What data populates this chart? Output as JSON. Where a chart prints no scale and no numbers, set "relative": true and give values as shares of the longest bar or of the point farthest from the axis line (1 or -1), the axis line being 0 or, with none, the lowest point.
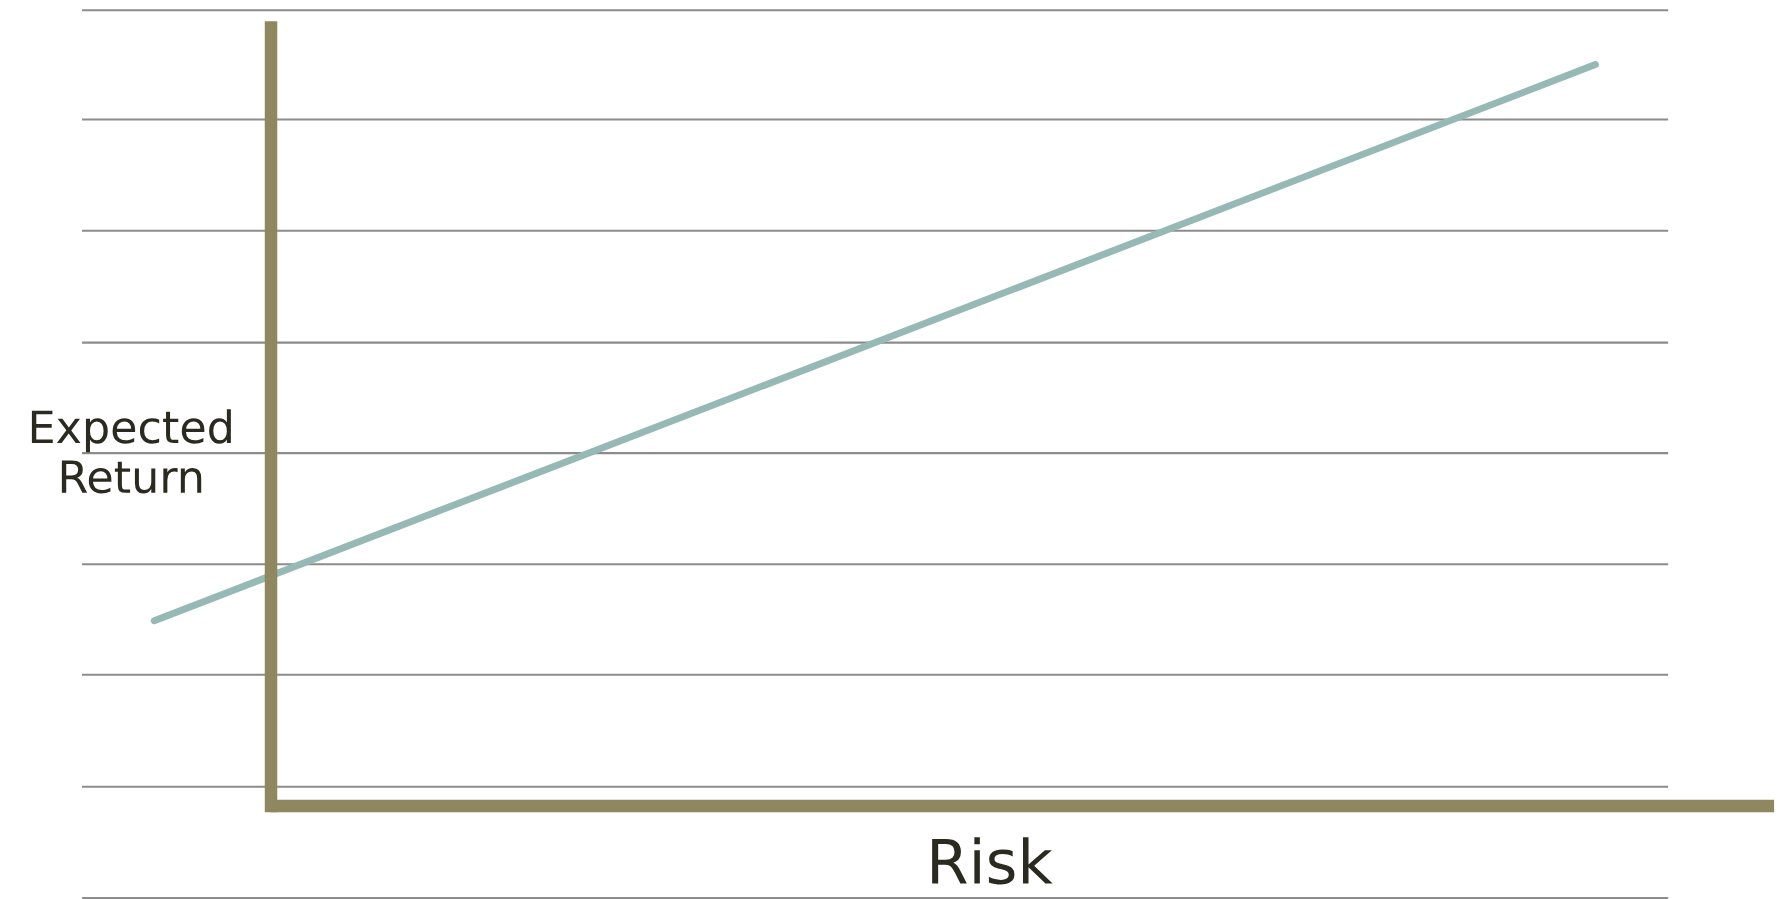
{
  "chart_data": {
    "type": "line",
    "xlabel": "Risk",
    "ylabel": "Expected\nReturn",
    "categories": [
      null,
      null
    ],
    "relative": true,
    "series": [
      {
        "color": "#97b9b5",
        "values": [
          0.25,
          1
        ]
      }
    ],
    "ref_lines": [
      {
        "axis": "y",
        "value": 0.926,
        "color": "#8c8c8c"
      },
      {
        "axis": "y",
        "value": 0.776,
        "color": "#8c8c8c"
      },
      {
        "axis": "y",
        "value": 0.625,
        "color": "#8c8c8c"
      },
      {
        "axis": "y",
        "value": 0.476,
        "color": "#8c8c8c"
      },
      {
        "axis": "y",
        "value": 0.326,
        "color": "#8c8c8c"
      },
      {
        "axis": "y",
        "value": 0.177,
        "color": "#8c8c8c"
      },
      {
        "axis": "y",
        "value": 0.026,
        "color": "#8c8c8c"
      },
      {
        "axis": "y",
        "value": 0,
        "color": "#8e8760"
      }
    ],
    "marker": "none",
    "line_style": "solid"
  }
}
